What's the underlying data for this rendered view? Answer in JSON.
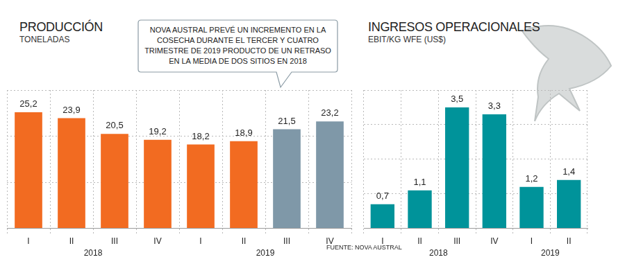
{
  "chart_data": [
    {
      "type": "bar",
      "title": "PRODUCCIÓN",
      "subtitle": "TONELADAS",
      "annotation": [
        "NOVA AUSTRAL PREVÉ UN INCREMENTO EN LA",
        "COSECHA DURANTE EL TERCER Y CUATRO",
        "TRIMESTRE DE 2019 PRODUCTO DE UN RETRASO",
        "EN LA MEDIA DE DOS SITIOS EN 2018"
      ],
      "source": "FUENTE: NOVA AUSTRAL",
      "categories": [
        "I",
        "II",
        "III",
        "IV",
        "I",
        "II",
        "III",
        "IV"
      ],
      "years": [
        "2018",
        "2018",
        "2018",
        "2018",
        "2019",
        "2019",
        "2019",
        "2019"
      ],
      "values": [
        25.2,
        23.9,
        20.5,
        19.2,
        18.2,
        18.9,
        21.5,
        23.2
      ],
      "value_labels": [
        "25,2",
        "23,9",
        "20,5",
        "19,2",
        "18,2",
        "18,9",
        "21,5",
        "23,2"
      ],
      "colors": [
        "#f26b21",
        "#f26b21",
        "#f26b21",
        "#f26b21",
        "#f26b21",
        "#f26b21",
        "#7f98a8",
        "#7f98a8"
      ],
      "ylim": [
        0,
        30
      ],
      "yticks": [
        0,
        10,
        20,
        30
      ],
      "grid": true,
      "data_labels": true,
      "tick_labels": "x"
    },
    {
      "type": "bar",
      "title": "INGRESOS OPERACIONALES",
      "subtitle": "EBIT/KG WFE (US$)",
      "categories": [
        "I",
        "II",
        "III",
        "IV",
        "I",
        "II"
      ],
      "years": [
        "2018",
        "2018",
        "2018",
        "2018",
        "2019",
        "2019"
      ],
      "values": [
        0.7,
        1.1,
        3.5,
        3.3,
        1.2,
        1.4
      ],
      "value_labels": [
        "0,7",
        "1,1",
        "3,5",
        "3,3",
        "1,2",
        "1,4"
      ],
      "color": "#00939a",
      "ylim": [
        0,
        4
      ],
      "yticks": [
        0,
        1,
        2,
        3,
        4
      ],
      "grid": true,
      "data_labels": true,
      "tick_labels": "x"
    }
  ]
}
